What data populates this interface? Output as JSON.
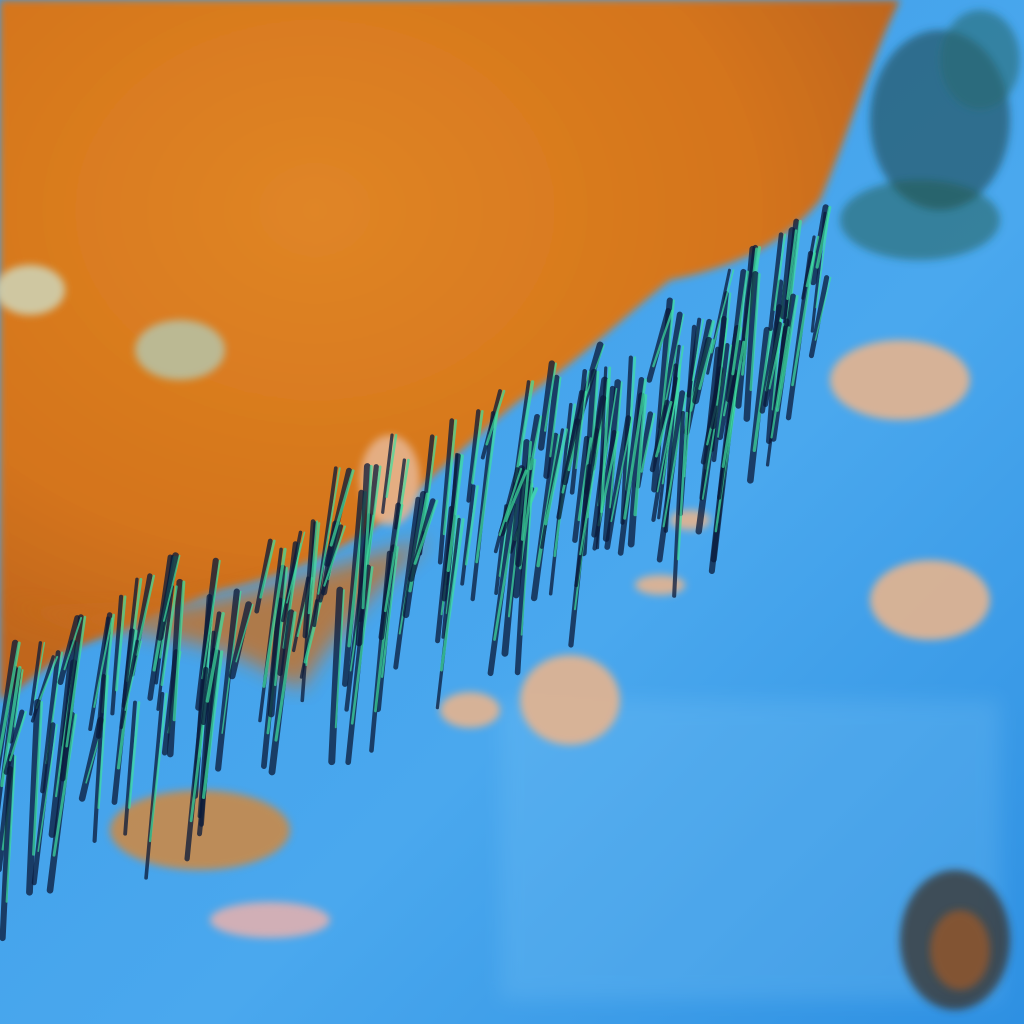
{
  "image": {
    "kind": "false-color satellite cloud imagery",
    "colors": {
      "ocean": "#2f93e6",
      "ocean_light": "#5fb3f0",
      "cloud_deck": "#d4741a",
      "cloud_deck_light": "#e08a2c",
      "cloud_pale": "#e8b088",
      "streak_dark": "#0a1a3a",
      "streak_green": "#3ee0a0"
    }
  }
}
